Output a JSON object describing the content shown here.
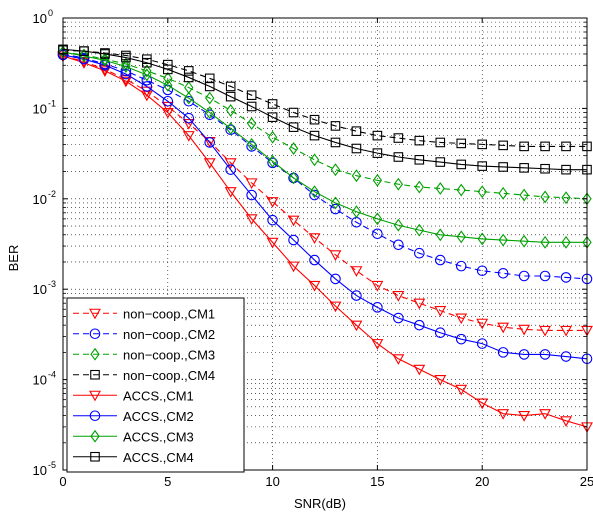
{
  "chart_data": {
    "type": "line",
    "title": "",
    "xlabel": "SNR(dB)",
    "ylabel": "BER",
    "xlim": [
      0,
      25
    ],
    "ylim": [
      1e-05,
      1
    ],
    "yscale": "log",
    "grid": true,
    "legend_position": "bottom-left",
    "x": [
      0,
      1,
      2,
      3,
      4,
      5,
      6,
      7,
      8,
      9,
      10,
      11,
      12,
      13,
      14,
      15,
      16,
      17,
      18,
      19,
      20,
      21,
      22,
      23,
      24,
      25
    ],
    "x_ticks": [
      0,
      5,
      10,
      15,
      20,
      25
    ],
    "x_tick_labels": [
      "0",
      "5",
      "10",
      "15",
      "20",
      "25"
    ],
    "y_ticks": [
      1e-05,
      0.0001,
      0.001,
      0.01,
      0.1,
      1
    ],
    "y_tick_labels": [
      {
        "base": "10",
        "exp": "-5"
      },
      {
        "base": "10",
        "exp": "-4"
      },
      {
        "base": "10",
        "exp": "-3"
      },
      {
        "base": "10",
        "exp": "-2"
      },
      {
        "base": "10",
        "exp": "-1"
      },
      {
        "base": "10",
        "exp": "0"
      }
    ],
    "series": [
      {
        "name": "non−coop.,CM1",
        "color": "#ff0000",
        "dash": true,
        "marker": "triangle-down",
        "values": [
          0.38,
          0.33,
          0.27,
          0.21,
          0.155,
          0.105,
          0.068,
          0.043,
          0.025,
          0.015,
          0.0093,
          0.0058,
          0.0037,
          0.0024,
          0.0016,
          0.0011,
          0.00085,
          0.0007,
          0.00058,
          0.00048,
          0.00042,
          0.00038,
          0.00036,
          0.00035,
          0.00035,
          0.00035
        ]
      },
      {
        "name": "non−coop.,CM2",
        "color": "#0000ff",
        "dash": true,
        "marker": "circle",
        "values": [
          0.4,
          0.36,
          0.31,
          0.26,
          0.205,
          0.16,
          0.12,
          0.085,
          0.058,
          0.038,
          0.025,
          0.017,
          0.011,
          0.0077,
          0.0055,
          0.0041,
          0.0031,
          0.0025,
          0.0021,
          0.0018,
          0.0016,
          0.0015,
          0.0014,
          0.0014,
          0.00135,
          0.0013
        ]
      },
      {
        "name": "non−coop.,CM3",
        "color": "#00a000",
        "dash": true,
        "marker": "diamond",
        "values": [
          0.42,
          0.39,
          0.35,
          0.31,
          0.26,
          0.215,
          0.17,
          0.13,
          0.095,
          0.068,
          0.048,
          0.036,
          0.027,
          0.021,
          0.018,
          0.016,
          0.0145,
          0.0135,
          0.013,
          0.0125,
          0.012,
          0.0115,
          0.011,
          0.0105,
          0.0103,
          0.01
        ]
      },
      {
        "name": "non−coop.,CM4",
        "color": "#000000",
        "dash": true,
        "marker": "square",
        "values": [
          0.44,
          0.43,
          0.41,
          0.385,
          0.35,
          0.305,
          0.26,
          0.215,
          0.175,
          0.14,
          0.112,
          0.09,
          0.075,
          0.064,
          0.056,
          0.05,
          0.047,
          0.044,
          0.042,
          0.041,
          0.04,
          0.039,
          0.038,
          0.038,
          0.038,
          0.038
        ]
      },
      {
        "name": "ACCS.,CM1",
        "color": "#ff0000",
        "dash": false,
        "marker": "triangle-down",
        "values": [
          0.38,
          0.32,
          0.26,
          0.2,
          0.14,
          0.09,
          0.05,
          0.025,
          0.012,
          0.006,
          0.0033,
          0.0018,
          0.0011,
          0.00065,
          0.0004,
          0.00025,
          0.00017,
          0.00013,
          0.0001,
          7.8e-05,
          5.5e-05,
          4.2e-05,
          4e-05,
          4.2e-05,
          3.5e-05,
          3e-05
        ]
      },
      {
        "name": "ACCS.,CM2",
        "color": "#0000ff",
        "dash": false,
        "marker": "circle",
        "values": [
          0.39,
          0.35,
          0.3,
          0.24,
          0.175,
          0.12,
          0.078,
          0.042,
          0.021,
          0.011,
          0.0058,
          0.0035,
          0.0021,
          0.0013,
          0.00085,
          0.00063,
          0.00048,
          0.0004,
          0.00033,
          0.00028,
          0.00025,
          0.0002,
          0.00019,
          0.00019,
          0.00018,
          0.00017
        ]
      },
      {
        "name": "ACCS.,CM3",
        "color": "#00a000",
        "dash": false,
        "marker": "diamond",
        "values": [
          0.42,
          0.38,
          0.34,
          0.29,
          0.235,
          0.18,
          0.13,
          0.09,
          0.06,
          0.04,
          0.026,
          0.017,
          0.012,
          0.009,
          0.0072,
          0.006,
          0.0051,
          0.0045,
          0.004,
          0.0038,
          0.0036,
          0.0035,
          0.0034,
          0.0033,
          0.0033,
          0.0033
        ]
      },
      {
        "name": "ACCS.,CM4",
        "color": "#000000",
        "dash": false,
        "marker": "square",
        "values": [
          0.45,
          0.43,
          0.4,
          0.365,
          0.32,
          0.27,
          0.22,
          0.175,
          0.135,
          0.105,
          0.08,
          0.062,
          0.05,
          0.042,
          0.036,
          0.032,
          0.029,
          0.027,
          0.0255,
          0.024,
          0.023,
          0.0225,
          0.022,
          0.0215,
          0.021,
          0.021
        ]
      }
    ]
  }
}
